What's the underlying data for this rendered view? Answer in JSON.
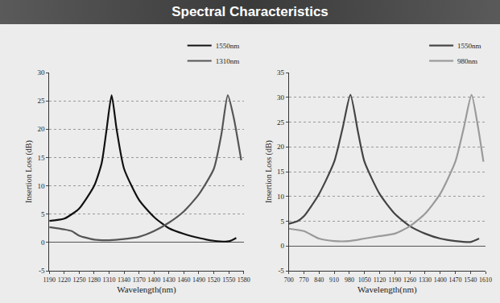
{
  "title": "Spectral Characteristics",
  "chart_data": [
    {
      "type": "line",
      "xlabel": "Wavelength(nm)",
      "ylabel": "Insertion Loss (dB)",
      "xlim": [
        1190,
        1580
      ],
      "xticks": [
        1190,
        1220,
        1250,
        1280,
        1310,
        1340,
        1370,
        1400,
        1430,
        1460,
        1490,
        1520,
        1550,
        1580
      ],
      "ylim": [
        -5,
        30
      ],
      "yticks": [
        -5,
        0,
        5,
        10,
        15,
        20,
        25,
        30
      ],
      "grid": "y",
      "legend": "upper right",
      "series": [
        {
          "name": "1550nm",
          "color": "#111111",
          "x": [
            1190,
            1220,
            1250,
            1280,
            1295,
            1305,
            1315,
            1325,
            1340,
            1370,
            1400,
            1430,
            1460,
            1490,
            1520,
            1550,
            1565
          ],
          "values": [
            3.8,
            4.2,
            6,
            10,
            14,
            20,
            26,
            20,
            13,
            7.5,
            4.5,
            2.5,
            1.5,
            0.8,
            0.3,
            0.2,
            0.8
          ]
        },
        {
          "name": "1310nm",
          "color": "#555555",
          "x": [
            1190,
            1220,
            1235,
            1250,
            1280,
            1310,
            1340,
            1370,
            1400,
            1430,
            1460,
            1490,
            1520,
            1535,
            1548,
            1560,
            1575
          ],
          "values": [
            2.7,
            2.3,
            2,
            1.2,
            0.5,
            0.4,
            0.6,
            1,
            2,
            3.5,
            5.5,
            8.5,
            13,
            19,
            26,
            22,
            14.5
          ]
        }
      ]
    },
    {
      "type": "line",
      "xlabel": "Wavelength(nm)",
      "ylabel": "Insertion Loss (dB)",
      "xlim": [
        700,
        1610
      ],
      "xticks": [
        700,
        770,
        840,
        910,
        980,
        1050,
        1120,
        1190,
        1260,
        1330,
        1400,
        1470,
        1540,
        1610
      ],
      "ylim": [
        -5,
        35
      ],
      "yticks": [
        -5,
        0,
        5,
        10,
        15,
        20,
        25,
        30,
        35
      ],
      "grid": "y",
      "legend": "upper right",
      "series": [
        {
          "name": "1550nm",
          "color": "#444444",
          "x": [
            700,
            740,
            770,
            840,
            910,
            950,
            985,
            1020,
            1050,
            1120,
            1190,
            1260,
            1330,
            1400,
            1470,
            1540,
            1580
          ],
          "values": [
            4.5,
            5,
            6,
            10.5,
            17,
            24,
            30.5,
            23,
            17,
            10.5,
            6.5,
            4,
            2.5,
            1.5,
            1,
            0.8,
            1.5
          ]
        },
        {
          "name": "980nm",
          "color": "#9a9a9a",
          "x": [
            700,
            770,
            840,
            910,
            980,
            1050,
            1120,
            1190,
            1260,
            1330,
            1400,
            1470,
            1510,
            1545,
            1575,
            1600
          ],
          "values": [
            3.5,
            3,
            1.5,
            1,
            1,
            1.5,
            2,
            2.5,
            4,
            6.5,
            10.5,
            17,
            24,
            30.5,
            24,
            17
          ]
        }
      ]
    }
  ]
}
